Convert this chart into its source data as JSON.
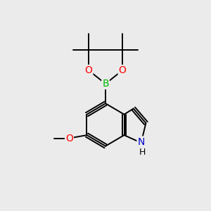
{
  "background_color": "#ebebeb",
  "atom_colors": {
    "C": "#000000",
    "B": "#00bb00",
    "O": "#ff0000",
    "N": "#0000cc",
    "H": "#000000"
  },
  "bond_color": "#000000",
  "bond_width": 1.4,
  "fig_width": 3.0,
  "fig_height": 3.0,
  "dpi": 100,
  "xlim": [
    0,
    10
  ],
  "ylim": [
    0,
    10
  ]
}
